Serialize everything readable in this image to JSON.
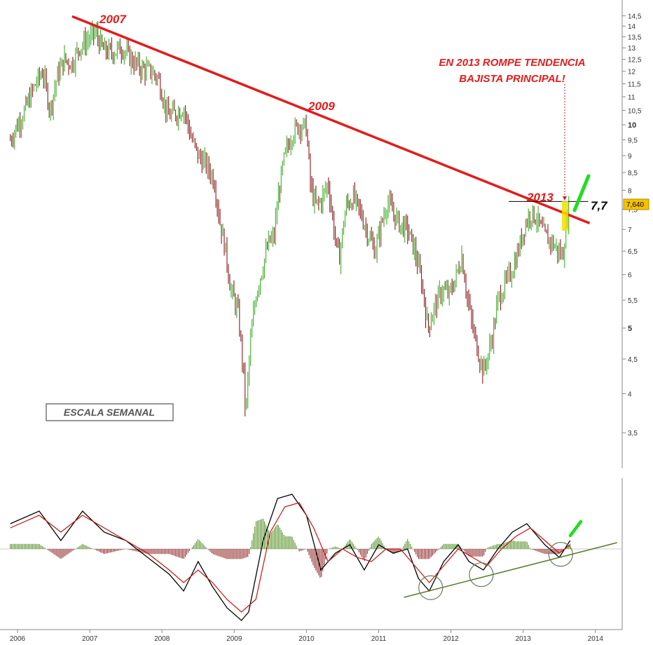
{
  "chart_data": [
    {
      "type": "bar",
      "subtype": "weekly-ohlc",
      "scale": "log",
      "ylim": [
        3.3,
        15
      ],
      "xlim": [
        "2006",
        "2014"
      ],
      "y_ticks": [
        "14,5",
        "14",
        "13,5",
        "13",
        "12,5",
        "12",
        "11,5",
        "11",
        "10,5",
        "10",
        "9,5",
        "9",
        "8,5",
        "8",
        "7,5",
        "7",
        "6,5",
        "6",
        "5,5",
        "5",
        "4,5",
        "4",
        "3,5"
      ],
      "y_tick_values": [
        14.5,
        14,
        13.5,
        13,
        12.5,
        12,
        11.5,
        11,
        10.5,
        10,
        9.5,
        9,
        8.5,
        8,
        7.5,
        7,
        6.5,
        6,
        5.5,
        5,
        4.5,
        4,
        3.5
      ],
      "bold_ticks": [
        "10",
        "5"
      ],
      "x_ticks": [
        "2006",
        "2007",
        "2008",
        "2009",
        "2010",
        "2011",
        "2012",
        "2013",
        "2014"
      ],
      "last_price_label": "7,640",
      "up_color": "#3fae2a",
      "down_color": "#8a1a1a",
      "series": [
        {
          "values": [
            [
              2005.9,
              9.5
            ],
            [
              2006.1,
              10.5
            ],
            [
              2006.25,
              11.5
            ],
            [
              2006.35,
              12.0
            ],
            [
              2006.45,
              10.5
            ],
            [
              2006.55,
              11.8
            ],
            [
              2006.65,
              12.5
            ],
            [
              2006.75,
              12.3
            ],
            [
              2006.85,
              13.0
            ],
            [
              2006.95,
              13.3
            ],
            [
              2007.08,
              13.7
            ],
            [
              2007.18,
              12.9
            ],
            [
              2007.3,
              12.8
            ],
            [
              2007.45,
              13.0
            ],
            [
              2007.6,
              12.4
            ],
            [
              2007.72,
              12.1
            ],
            [
              2007.85,
              12.0
            ],
            [
              2007.95,
              11.7
            ],
            [
              2008.08,
              10.3
            ],
            [
              2008.2,
              10.4
            ],
            [
              2008.3,
              10.6
            ],
            [
              2008.4,
              9.6
            ],
            [
              2008.5,
              9.0
            ],
            [
              2008.62,
              8.7
            ],
            [
              2008.72,
              8.3
            ],
            [
              2008.8,
              7.2
            ],
            [
              2008.88,
              6.5
            ],
            [
              2008.95,
              5.7
            ],
            [
              2009.05,
              5.3
            ],
            [
              2009.12,
              4.4
            ],
            [
              2009.16,
              3.7
            ],
            [
              2009.22,
              4.7
            ],
            [
              2009.3,
              5.6
            ],
            [
              2009.4,
              6.2
            ],
            [
              2009.48,
              6.7
            ],
            [
              2009.55,
              6.8
            ],
            [
              2009.62,
              8.0
            ],
            [
              2009.7,
              9.0
            ],
            [
              2009.8,
              9.7
            ],
            [
              2009.9,
              10.0
            ],
            [
              2010.0,
              9.9
            ],
            [
              2010.05,
              8.2
            ],
            [
              2010.12,
              7.6
            ],
            [
              2010.2,
              7.7
            ],
            [
              2010.3,
              8.2
            ],
            [
              2010.38,
              7.0
            ],
            [
              2010.45,
              6.3
            ],
            [
              2010.55,
              7.6
            ],
            [
              2010.65,
              7.8
            ],
            [
              2010.75,
              7.4
            ],
            [
              2010.85,
              6.9
            ],
            [
              2010.95,
              6.5
            ],
            [
              2011.05,
              7.2
            ],
            [
              2011.12,
              7.7
            ],
            [
              2011.2,
              7.4
            ],
            [
              2011.3,
              7.1
            ],
            [
              2011.4,
              7.0
            ],
            [
              2011.5,
              6.5
            ],
            [
              2011.6,
              5.8
            ],
            [
              2011.68,
              5.0
            ],
            [
              2011.78,
              5.4
            ],
            [
              2011.88,
              5.7
            ],
            [
              2011.98,
              5.6
            ],
            [
              2012.08,
              6.0
            ],
            [
              2012.15,
              6.4
            ],
            [
              2012.22,
              5.6
            ],
            [
              2012.3,
              5.0
            ],
            [
              2012.38,
              4.6
            ],
            [
              2012.45,
              4.3
            ],
            [
              2012.52,
              4.6
            ],
            [
              2012.58,
              4.9
            ],
            [
              2012.65,
              5.5
            ],
            [
              2012.75,
              5.8
            ],
            [
              2012.85,
              6.1
            ],
            [
              2012.95,
              6.6
            ],
            [
              2013.02,
              7.1
            ],
            [
              2013.1,
              7.4
            ],
            [
              2013.18,
              7.3
            ],
            [
              2013.25,
              7.0
            ],
            [
              2013.32,
              6.8
            ],
            [
              2013.4,
              6.7
            ],
            [
              2013.48,
              6.5
            ],
            [
              2013.55,
              6.4
            ],
            [
              2013.6,
              7.2
            ],
            [
              2013.64,
              7.64
            ]
          ]
        }
      ],
      "annotations": {
        "label_2007": "2007",
        "label_2009": "2009",
        "label_2013": "2013",
        "headline_1": "EN 2013 ROMPE TENDENCIA",
        "headline_2": "BAJISTA PRINCIPAL!",
        "level": "7,7",
        "scale_box": "ESCALA SEMANAL"
      },
      "trendline": {
        "from": [
          2006.95,
          14.3
        ],
        "to": [
          2013.92,
          7.15
        ],
        "color": "#e31b1b"
      },
      "level_line_value": 7.7
    },
    {
      "type": "line",
      "subtype": "oscillator",
      "series": [
        {
          "name": "",
          "color": "#000000",
          "values": [
            [
              2005.9,
              0.6
            ],
            [
              2006.3,
              0.9
            ],
            [
              2006.6,
              0.2
            ],
            [
              2006.9,
              0.9
            ],
            [
              2007.2,
              0.4
            ],
            [
              2007.5,
              0.2
            ],
            [
              2007.8,
              -0.2
            ],
            [
              2008.1,
              -0.6
            ],
            [
              2008.3,
              -1.0
            ],
            [
              2008.5,
              -0.3
            ],
            [
              2008.7,
              -0.9
            ],
            [
              2008.9,
              -1.4
            ],
            [
              2009.1,
              -1.7
            ],
            [
              2009.2,
              -1.5
            ],
            [
              2009.4,
              0.2
            ],
            [
              2009.6,
              1.2
            ],
            [
              2009.8,
              1.3
            ],
            [
              2010.0,
              0.8
            ],
            [
              2010.2,
              -0.5
            ],
            [
              2010.4,
              -0.1
            ],
            [
              2010.6,
              0.1
            ],
            [
              2010.8,
              -0.5
            ],
            [
              2011.0,
              0.1
            ],
            [
              2011.2,
              -0.1
            ],
            [
              2011.4,
              0.0
            ],
            [
              2011.55,
              -0.7
            ],
            [
              2011.7,
              -1.0
            ],
            [
              2011.9,
              -0.3
            ],
            [
              2012.1,
              0.1
            ],
            [
              2012.25,
              -0.3
            ],
            [
              2012.45,
              -0.5
            ],
            [
              2012.65,
              0.0
            ],
            [
              2012.85,
              0.4
            ],
            [
              2013.05,
              0.6
            ],
            [
              2013.3,
              0.1
            ],
            [
              2013.5,
              -0.2
            ],
            [
              2013.65,
              0.2
            ]
          ]
        },
        {
          "name": "",
          "color": "#cc1111",
          "values": [
            [
              2005.9,
              0.5
            ],
            [
              2006.3,
              0.8
            ],
            [
              2006.6,
              0.4
            ],
            [
              2006.9,
              0.8
            ],
            [
              2007.2,
              0.5
            ],
            [
              2007.5,
              0.2
            ],
            [
              2007.8,
              -0.1
            ],
            [
              2008.1,
              -0.5
            ],
            [
              2008.3,
              -0.8
            ],
            [
              2008.5,
              -0.5
            ],
            [
              2008.7,
              -0.8
            ],
            [
              2008.9,
              -1.2
            ],
            [
              2009.1,
              -1.5
            ],
            [
              2009.3,
              -1.2
            ],
            [
              2009.5,
              0.4
            ],
            [
              2009.7,
              1.0
            ],
            [
              2009.9,
              1.1
            ],
            [
              2010.1,
              0.5
            ],
            [
              2010.3,
              -0.3
            ],
            [
              2010.5,
              0.0
            ],
            [
              2010.7,
              -0.2
            ],
            [
              2010.9,
              -0.3
            ],
            [
              2011.1,
              0.0
            ],
            [
              2011.3,
              0.0
            ],
            [
              2011.5,
              -0.4
            ],
            [
              2011.7,
              -0.8
            ],
            [
              2011.9,
              -0.4
            ],
            [
              2012.1,
              0.0
            ],
            [
              2012.3,
              -0.2
            ],
            [
              2012.5,
              -0.4
            ],
            [
              2012.7,
              0.0
            ],
            [
              2012.9,
              0.3
            ],
            [
              2013.1,
              0.5
            ],
            [
              2013.3,
              0.2
            ],
            [
              2013.5,
              -0.1
            ],
            [
              2013.65,
              0.1
            ]
          ]
        }
      ],
      "histogram_color_up": "#4a8a1a",
      "histogram_color_down": "#8a1a1a",
      "support_line": {
        "from": [
          2011.35,
          -1.15
        ],
        "to": [
          2014.3,
          0.15
        ],
        "color": "#5a7a2a"
      },
      "circles_x": [
        2011.72,
        2012.42,
        2013.52
      ]
    }
  ]
}
